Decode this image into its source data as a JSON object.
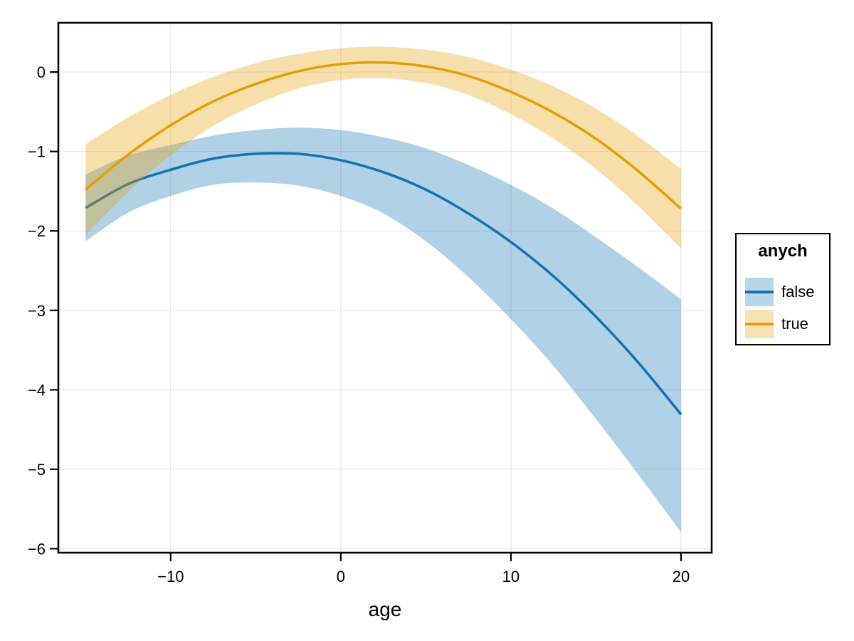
{
  "figure": {
    "background": "#ffffff"
  },
  "axis": {
    "xlabel": "age",
    "xtick_labels": [
      "−10",
      "0",
      "10",
      "20"
    ],
    "ytick_labels": [
      "0",
      "−1",
      "−2",
      "−3",
      "−4",
      "−5",
      "−6"
    ]
  },
  "legend": {
    "title": "anych",
    "items": [
      {
        "label": "false",
        "line_color": "#1373B2",
        "band_color": "#B8D5E9"
      },
      {
        "label": "true",
        "line_color": "#E69F00",
        "band_color": "#F7E2B4"
      }
    ]
  },
  "chart_data": {
    "type": "line",
    "title": "",
    "xlabel": "age",
    "ylabel": "",
    "xlim": [
      -16.6,
      21.8
    ],
    "ylim": [
      -6.05,
      0.62
    ],
    "xticks": [
      -10,
      0,
      10,
      20
    ],
    "yticks": [
      0,
      -1,
      -2,
      -3,
      -4,
      -5,
      -6
    ],
    "grid": true,
    "legend_title": "anych",
    "legend_position": "right",
    "x": [
      -15,
      -12.5,
      -10,
      -7.5,
      -5,
      -2.5,
      0,
      2.5,
      5,
      7.5,
      10,
      12.5,
      15,
      17.5,
      20
    ],
    "series": [
      {
        "name": "false",
        "color": "#1373B2",
        "band_opacity": 0.33,
        "mean": [
          -1.71,
          -1.41,
          -1.23,
          -1.09,
          -1.03,
          -1.03,
          -1.11,
          -1.26,
          -1.48,
          -1.78,
          -2.14,
          -2.57,
          -3.08,
          -3.66,
          -4.31
        ],
        "upper": [
          -1.29,
          -1.05,
          -0.92,
          -0.8,
          -0.73,
          -0.7,
          -0.73,
          -0.82,
          -0.96,
          -1.17,
          -1.42,
          -1.72,
          -2.08,
          -2.46,
          -2.86
        ],
        "lower": [
          -2.13,
          -1.77,
          -1.56,
          -1.42,
          -1.39,
          -1.43,
          -1.56,
          -1.78,
          -2.13,
          -2.58,
          -3.11,
          -3.7,
          -4.37,
          -5.07,
          -5.79
        ]
      },
      {
        "name": "true",
        "color": "#E69F00",
        "band_opacity": 0.33,
        "mean": [
          -1.48,
          -1.04,
          -0.67,
          -0.37,
          -0.15,
          0.01,
          0.1,
          0.12,
          0.07,
          -0.05,
          -0.25,
          -0.51,
          -0.84,
          -1.25,
          -1.72
        ],
        "upper": [
          -0.91,
          -0.57,
          -0.29,
          -0.06,
          0.11,
          0.23,
          0.3,
          0.32,
          0.28,
          0.19,
          0.03,
          -0.18,
          -0.46,
          -0.81,
          -1.22
        ],
        "lower": [
          -2.05,
          -1.51,
          -1.05,
          -0.68,
          -0.41,
          -0.21,
          -0.1,
          -0.08,
          -0.14,
          -0.29,
          -0.53,
          -0.84,
          -1.22,
          -1.69,
          -2.22
        ]
      }
    ]
  }
}
